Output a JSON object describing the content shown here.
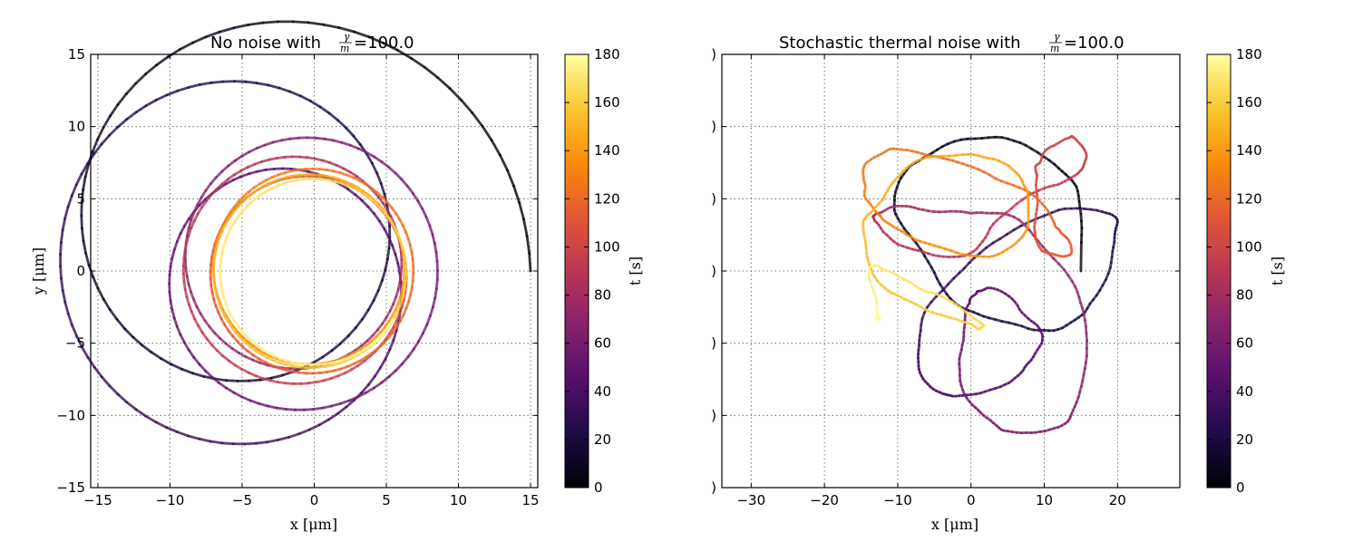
{
  "chart_data": [
    {
      "type": "line",
      "title_prefix": "No noise with ",
      "title_fraction": {
        "numerator": "γ",
        "denominator": "m"
      },
      "title_suffix": "=100.0",
      "xlabel": "x [μm]",
      "ylabel": "y [μm]",
      "xlim": [
        -15.5,
        15.5
      ],
      "ylim": [
        -15,
        15
      ],
      "xticks": [
        -15,
        -10,
        -5,
        0,
        5,
        10,
        15
      ],
      "yticks": [
        -15,
        -10,
        -5,
        0,
        5,
        10,
        15
      ],
      "xtick_labels": [
        "−15",
        "−10",
        "−5",
        "0",
        "5",
        "10",
        "15"
      ],
      "ytick_labels": [
        "−15",
        "−10",
        "−5",
        "0",
        "5",
        "10",
        "15"
      ],
      "grid": true,
      "trajectory": {
        "description_key": "damped_spiral",
        "start": [
          15,
          0
        ],
        "r_start": 15,
        "r_end": 6.3,
        "lobes": 7
      },
      "colorbar": {
        "label": "t [s]",
        "range": [
          0,
          180
        ],
        "ticks": [
          0,
          20,
          40,
          60,
          80,
          100,
          120,
          140,
          160,
          180
        ],
        "colormap": "inferno"
      }
    },
    {
      "type": "line",
      "title_prefix": "Stochastic thermal noise with ",
      "title_fraction": {
        "numerator": "γ",
        "denominator": "m"
      },
      "title_suffix": "=100.0",
      "xlabel": "x [μm]",
      "ylabel": "",
      "xlim": [
        -34,
        28.5
      ],
      "ylim": [
        -30,
        30
      ],
      "xticks": [
        -30,
        -20,
        -10,
        0,
        10,
        20
      ],
      "yticks": [
        -30,
        -20,
        -10,
        0,
        10,
        20,
        30
      ],
      "xtick_labels": [
        "−30",
        "−20",
        "−10",
        "0",
        "10",
        "20"
      ],
      "ytick_labels": [
        ")",
        ")",
        ")",
        ")",
        ")",
        ")",
        ")"
      ],
      "grid": true,
      "trajectory": {
        "description_key": "noisy_spiral",
        "start": [
          15,
          0
        ]
      },
      "colorbar": {
        "label": "t [s]",
        "range": [
          0,
          180
        ],
        "ticks": [
          0,
          20,
          40,
          60,
          80,
          100,
          120,
          140,
          160,
          180
        ],
        "colormap": "inferno"
      }
    }
  ]
}
